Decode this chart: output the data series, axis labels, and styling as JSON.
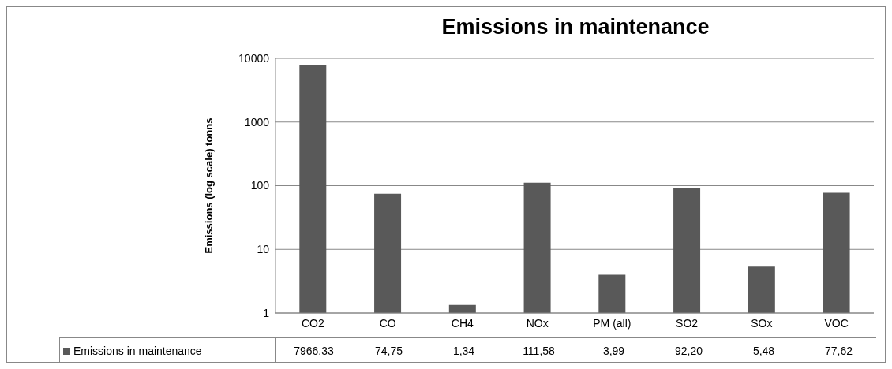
{
  "chart_data": {
    "type": "bar",
    "title": "Emissions in maintenance",
    "ylabel": "Emissions (log scale) tonns",
    "categories": [
      "CO2",
      "CO",
      "CH4",
      "NOx",
      "PM (all)",
      "SO2",
      "SOx",
      "VOC"
    ],
    "series": [
      {
        "name": "Emissions in maintenance",
        "color": "#595959",
        "values": [
          7966.33,
          74.75,
          1.34,
          111.58,
          3.99,
          92.2,
          5.48,
          77.62
        ],
        "value_labels": [
          "7966,33",
          "74,75",
          "1,34",
          "111,58",
          "3,99",
          "92,20",
          "5,48",
          "77,62"
        ]
      }
    ],
    "log": true,
    "ylim": [
      1,
      10000
    ],
    "yticks": [
      1,
      10,
      100,
      1000,
      10000
    ],
    "grid": "y",
    "legend": "bottom left"
  }
}
